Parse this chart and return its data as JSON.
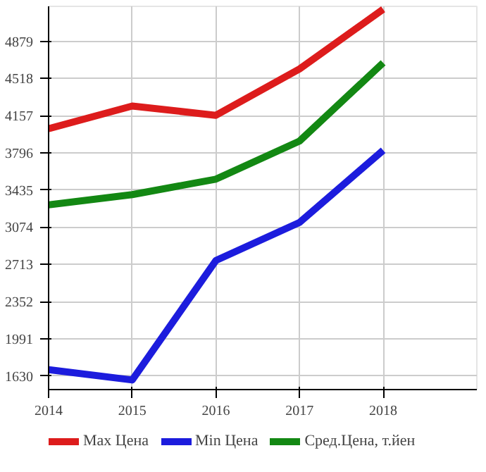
{
  "chart_data": {
    "type": "line",
    "x": [
      2014,
      2015,
      2016,
      2017,
      2018
    ],
    "series": [
      {
        "name": "Max Цена",
        "color": "#dd1c1c",
        "values": [
          4030,
          4250,
          4160,
          4610,
          5190
        ]
      },
      {
        "name": "Min Цена",
        "color": "#1c1cdd",
        "values": [
          1690,
          1590,
          2750,
          3120,
          3820
        ]
      },
      {
        "name": "Сред.Цена, т.йен",
        "color": "#138813",
        "values": [
          3290,
          3390,
          3540,
          3910,
          4670
        ]
      }
    ],
    "xlim": [
      2014,
      2019.12
    ],
    "xticks": [
      2014,
      2015,
      2016,
      2017,
      2018
    ],
    "ylim": [
      1497,
      5218
    ],
    "yticks": [
      1630,
      1991,
      2352,
      2713,
      3074,
      3435,
      3796,
      4157,
      4518,
      4879
    ],
    "grid": true,
    "legend": "bottom",
    "marker": "none",
    "line_style": "solid"
  }
}
